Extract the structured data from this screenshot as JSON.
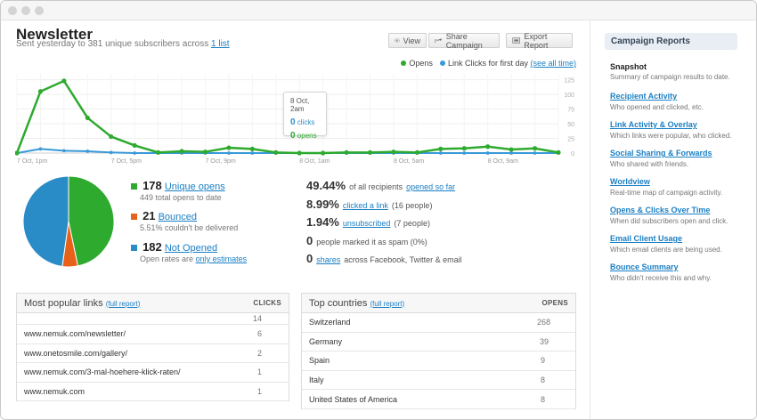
{
  "page": {
    "title": "Newsletter",
    "subtitle_prefix": "Sent yesterday to 381 unique subscribers across",
    "subtitle_link": "1 list"
  },
  "toolbar": {
    "view_label": "View",
    "share_label": "Share Campaign",
    "export_label": "Export Report"
  },
  "chart_legend": {
    "opens": "Opens",
    "clicks": "Link Clicks for first day",
    "see_all": "(see all time)"
  },
  "tooltip": {
    "time": "8 Oct, 2am",
    "clicks_value": "0",
    "clicks_label": "clicks",
    "opens_value": "0",
    "opens_label": "opens"
  },
  "chart_data": {
    "type": "line",
    "x": [
      "7 Oct, 1pm",
      "",
      "",
      "",
      "7 Oct, 5pm",
      "",
      "",
      "",
      "7 Oct, 9pm",
      "",
      "",
      "",
      "8 Oct, 1am",
      "",
      "",
      "",
      "8 Oct, 5am",
      "",
      "",
      "",
      "8 Oct, 9am",
      "",
      "",
      ""
    ],
    "x_tick_labels": [
      "7 Oct, 1pm",
      "7 Oct, 5pm",
      "7 Oct, 9pm",
      "8 Oct, 1am",
      "8 Oct, 5am",
      "8 Oct, 9am"
    ],
    "y_tick_labels": [
      "0",
      "25",
      "50",
      "75",
      "100",
      "125"
    ],
    "ylim": [
      0,
      135
    ],
    "series": [
      {
        "name": "Opens",
        "color": "#2eaa2e",
        "values": [
          0,
          105,
          123,
          60,
          28,
          13,
          1,
          3,
          2,
          9,
          7,
          1,
          0,
          0,
          1,
          1,
          2,
          1,
          7,
          8,
          11,
          6,
          8,
          1
        ]
      },
      {
        "name": "Link Clicks for first day",
        "color": "#3a9ad9",
        "values": [
          0,
          7,
          4,
          3,
          1,
          0,
          0,
          0,
          0,
          0,
          0,
          0,
          0,
          0,
          0,
          0,
          0,
          0,
          0,
          0,
          0,
          0,
          0,
          0
        ]
      }
    ],
    "grid": true
  },
  "pie": {
    "slices": [
      {
        "label": "Unique opens",
        "value": 178,
        "color": "#2eaa2e"
      },
      {
        "label": "Bounced",
        "value": 21,
        "color": "#e8611a"
      },
      {
        "label": "Not Opened",
        "value": 182,
        "color": "#2a8cc7"
      }
    ]
  },
  "stats": {
    "opens_count": "178",
    "opens_label": "Unique opens",
    "opens_sub": "449 total opens to date",
    "bounced_count": "21",
    "bounced_label": "Bounced",
    "bounced_sub": "5.51% couldn't be delivered",
    "notopened_count": "182",
    "notopened_label": "Not Opened",
    "notopened_sub_prefix": "Open rates are",
    "notopened_sub_link": "only estimates"
  },
  "percentages": [
    {
      "value": "49.44%",
      "prefix": "of all recipients",
      "link": "opened so far",
      "suffix": ""
    },
    {
      "value": "8.99%",
      "prefix": "",
      "link": "clicked a link",
      "suffix": "(16 people)"
    },
    {
      "value": "1.94%",
      "prefix": "",
      "link": "unsubscribed",
      "suffix": "(7 people)"
    },
    {
      "value": "0",
      "prefix": "people marked it as spam (0%)",
      "link": "",
      "suffix": ""
    },
    {
      "value": "0",
      "prefix": "",
      "link": "shares",
      "suffix": "across Facebook, Twitter & email"
    }
  ],
  "links_table": {
    "title": "Most popular links",
    "full_report": "(full report)",
    "col": "CLICKS",
    "rows": [
      {
        "url": "",
        "n": "14"
      },
      {
        "url": "www.nemuk.com/newsletter/",
        "n": "6"
      },
      {
        "url": "www.onetosmile.com/gallery/",
        "n": "2"
      },
      {
        "url": "www.nemuk.com/3-mal-hoehere-klick-raten/",
        "n": "1"
      },
      {
        "url": "www.nemuk.com",
        "n": "1"
      }
    ]
  },
  "countries_table": {
    "title": "Top countries",
    "full_report": "(full report)",
    "col": "OPENS",
    "rows": [
      {
        "name": "Switzerland",
        "n": "268"
      },
      {
        "name": "Germany",
        "n": "39"
      },
      {
        "name": "Spain",
        "n": "9"
      },
      {
        "name": "Italy",
        "n": "8"
      },
      {
        "name": "United States of America",
        "n": "8"
      }
    ]
  },
  "sidebar": {
    "header": "Campaign Reports",
    "snapshot_title": "Snapshot",
    "snapshot_desc": "Summary of campaign results to date.",
    "items": [
      {
        "title": "Recipient Activity",
        "desc": "Who opened and clicked, etc."
      },
      {
        "title": "Link Activity & Overlay",
        "desc": "Which links were popular, who clicked."
      },
      {
        "title": "Social Sharing & Forwards",
        "desc": "Who shared with friends."
      },
      {
        "title": "Worldview",
        "desc": "Real-time map of campaign activity."
      },
      {
        "title": "Opens & Clicks Over Time",
        "desc": "When did subscribers open and click."
      },
      {
        "title": "Email Client Usage",
        "desc": "Which email clients are being used."
      },
      {
        "title": "Bounce Summary",
        "desc": "Who didn't receive this and why."
      }
    ]
  }
}
